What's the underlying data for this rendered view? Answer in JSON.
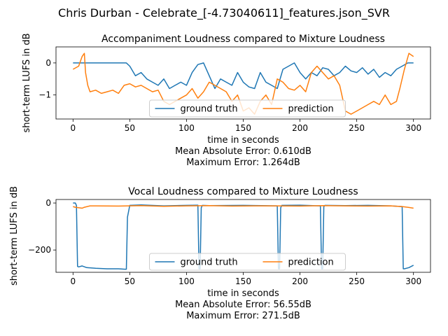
{
  "suptitle": "Chris Durban - Celebrate_[-4.73040611]_features.json_SVR",
  "colors": {
    "ground_truth": "#1f77b4",
    "prediction": "#ff7f0e"
  },
  "chart_data": [
    {
      "type": "line",
      "title": "Accompaniment Loudness compared to Mixture Loudness",
      "xlabel": "time in seconds",
      "ylabel": "short-term LUFS in dB",
      "xlim": [
        -15,
        315
      ],
      "ylim": [
        -1.75,
        0.5
      ],
      "xticks": [
        0,
        50,
        100,
        150,
        200,
        250,
        300
      ],
      "yticks": [
        0,
        -1
      ],
      "legend": "lower-center",
      "footer": [
        "Mean Absolute Error: 0.610dB",
        "Maximum Error: 1.264dB"
      ],
      "series": [
        {
          "name": "ground truth",
          "x": [
            0,
            20,
            40,
            47,
            50,
            55,
            60,
            65,
            70,
            75,
            80,
            85,
            90,
            95,
            100,
            105,
            110,
            115,
            120,
            125,
            130,
            135,
            140,
            145,
            150,
            155,
            160,
            165,
            170,
            175,
            180,
            185,
            190,
            195,
            200,
            205,
            210,
            215,
            220,
            225,
            230,
            235,
            240,
            245,
            250,
            255,
            260,
            265,
            270,
            275,
            280,
            285,
            290,
            295,
            300
          ],
          "y": [
            0,
            0,
            0,
            0,
            -0.1,
            -0.4,
            -0.3,
            -0.5,
            -0.6,
            -0.7,
            -0.5,
            -0.8,
            -0.7,
            -0.6,
            -0.7,
            -0.3,
            -0.05,
            0,
            -0.4,
            -0.8,
            -0.5,
            -0.6,
            -0.7,
            -0.3,
            -0.6,
            -0.75,
            -0.8,
            -0.3,
            -0.6,
            -0.7,
            -0.8,
            -0.2,
            -0.1,
            0,
            -0.3,
            -0.5,
            -0.3,
            -0.4,
            -0.15,
            -0.2,
            -0.4,
            -0.3,
            -0.1,
            -0.25,
            -0.3,
            -0.15,
            -0.35,
            -0.2,
            -0.45,
            -0.3,
            -0.4,
            -0.2,
            -0.1,
            0,
            0
          ]
        },
        {
          "name": "prediction",
          "x": [
            0,
            5,
            8,
            10,
            11,
            13,
            15,
            20,
            25,
            30,
            35,
            40,
            45,
            50,
            55,
            60,
            65,
            70,
            75,
            80,
            85,
            90,
            95,
            100,
            105,
            110,
            115,
            120,
            125,
            130,
            135,
            140,
            145,
            150,
            155,
            160,
            165,
            170,
            175,
            180,
            185,
            190,
            195,
            200,
            205,
            210,
            215,
            220,
            225,
            230,
            235,
            240,
            245,
            250,
            255,
            260,
            265,
            270,
            275,
            280,
            285,
            288,
            292,
            296,
            300
          ],
          "y": [
            -0.2,
            -0.1,
            0.2,
            0.3,
            -0.3,
            -0.7,
            -0.9,
            -0.85,
            -0.95,
            -0.9,
            -0.85,
            -0.95,
            -0.7,
            -0.65,
            -0.75,
            -0.7,
            -0.8,
            -0.9,
            -0.85,
            -1.2,
            -1.3,
            -1.2,
            -1.1,
            -1.0,
            -0.8,
            -1.1,
            -0.9,
            -0.6,
            -0.7,
            -0.8,
            -0.9,
            -1.2,
            -1.0,
            -1.5,
            -1.4,
            -1.6,
            -1.2,
            -1.0,
            -1.3,
            -0.5,
            -0.6,
            -0.8,
            -0.85,
            -0.7,
            -0.9,
            -0.3,
            -0.1,
            -0.3,
            -0.5,
            -0.4,
            -0.7,
            -1.5,
            -1.6,
            -1.5,
            -1.4,
            -1.3,
            -1.2,
            -1.3,
            -1.0,
            -1.3,
            -1.2,
            -0.8,
            -0.2,
            0.3,
            0.2
          ]
        }
      ]
    },
    {
      "type": "line",
      "title": "Vocal Loudness compared to Mixture Loudness",
      "xlabel": "time in seconds",
      "ylabel": "short-term LUFS in dB",
      "xlim": [
        -15,
        315
      ],
      "ylim": [
        -295,
        15
      ],
      "xticks": [
        0,
        50,
        100,
        150,
        200,
        250,
        300
      ],
      "yticks": [
        0,
        -200
      ],
      "legend": "lower-center",
      "footer": [
        "Mean Absolute Error: 56.55dB",
        "Maximum Error: 271.5dB"
      ],
      "series": [
        {
          "name": "ground truth",
          "x": [
            0,
            2,
            3,
            4,
            5,
            8,
            12,
            20,
            30,
            40,
            46,
            47,
            48,
            50,
            60,
            80,
            100,
            110,
            111,
            112,
            113,
            114,
            120,
            150,
            180,
            181,
            182,
            183,
            184,
            200,
            218,
            219,
            220,
            221,
            222,
            240,
            260,
            280,
            290,
            291,
            292,
            296,
            300
          ],
          "y": [
            0,
            0,
            -10,
            -270,
            -272,
            -268,
            -275,
            -278,
            -280,
            -280,
            -282,
            -282,
            -60,
            -10,
            -8,
            -12,
            -10,
            -9,
            -280,
            -280,
            -20,
            -10,
            -11,
            -10,
            -12,
            -280,
            -280,
            -20,
            -10,
            -9,
            -12,
            -280,
            -280,
            -15,
            -10,
            -11,
            -10,
            -12,
            -15,
            -280,
            -280,
            -275,
            -265
          ]
        },
        {
          "name": "prediction",
          "x": [
            0,
            2,
            5,
            8,
            10,
            15,
            20,
            40,
            60,
            80,
            100,
            120,
            140,
            160,
            180,
            200,
            220,
            240,
            260,
            280,
            290,
            295,
            300
          ],
          "y": [
            -15,
            -18,
            -20,
            -22,
            -18,
            -12,
            -12,
            -13,
            -11,
            -14,
            -12,
            -11,
            -13,
            -12,
            -12,
            -13,
            -11,
            -12,
            -13,
            -12,
            -15,
            -18,
            -22
          ]
        }
      ]
    }
  ]
}
